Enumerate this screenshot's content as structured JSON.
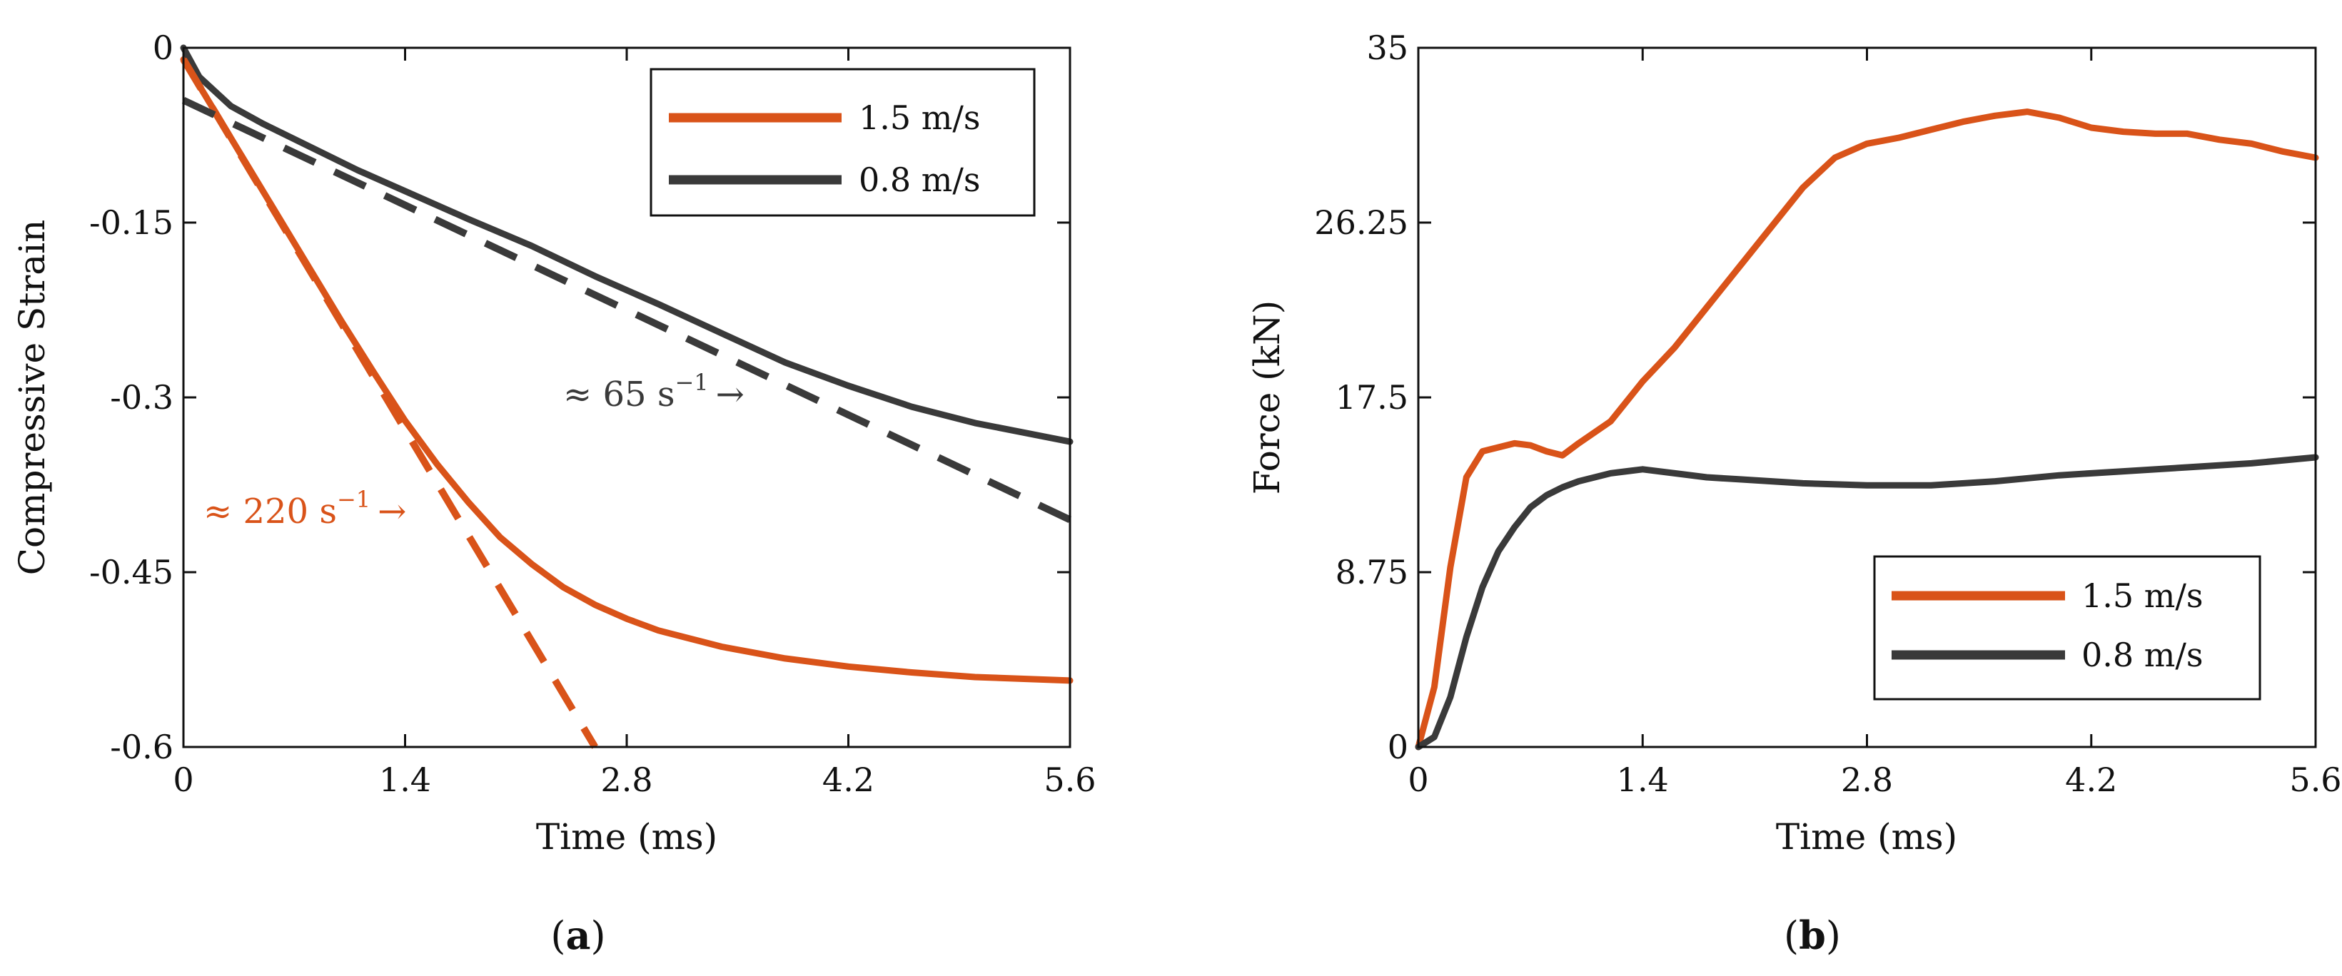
{
  "colors": {
    "orange": "#D95319",
    "dark": "#3A3A3A",
    "axis": "#111111"
  },
  "panels": [
    {
      "id": "a",
      "caption": "a",
      "chart_data": {
        "type": "line",
        "xlabel": "Time (ms)",
        "ylabel": "Compressive Strain",
        "xlim": [
          0,
          5.6
        ],
        "ylim": [
          -0.6,
          0
        ],
        "xticks": [
          0,
          1.4,
          2.8,
          4.2,
          5.6
        ],
        "xtick_labels": [
          "0",
          "1.4",
          "2.8",
          "4.2",
          "5.6"
        ],
        "yticks": [
          0,
          -0.15,
          -0.3,
          -0.45,
          -0.6
        ],
        "ytick_labels": [
          "0",
          "-0.15",
          "-0.3",
          "-0.45",
          "-0.6"
        ],
        "grid": false,
        "legend": "top-right",
        "series": [
          {
            "name": "1.5 m/s",
            "color": "#D95319",
            "style": "solid",
            "x": [
              0,
              0.2,
              0.4,
              0.6,
              0.8,
              1.0,
              1.2,
              1.4,
              1.6,
              1.8,
              2.0,
              2.2,
              2.4,
              2.6,
              2.8,
              3.0,
              3.4,
              3.8,
              4.2,
              4.6,
              5.0,
              5.6
            ],
            "y": [
              -0.01,
              -0.055,
              -0.1,
              -0.145,
              -0.19,
              -0.235,
              -0.278,
              -0.32,
              -0.357,
              -0.39,
              -0.42,
              -0.443,
              -0.463,
              -0.478,
              -0.49,
              -0.5,
              -0.514,
              -0.524,
              -0.531,
              -0.536,
              -0.54,
              -0.543
            ]
          },
          {
            "name": "0.8 m/s",
            "color": "#3A3A3A",
            "style": "solid",
            "x": [
              0,
              0.1,
              0.3,
              0.5,
              0.8,
              1.1,
              1.4,
              1.8,
              2.2,
              2.6,
              3.0,
              3.4,
              3.8,
              4.2,
              4.6,
              5.0,
              5.6
            ],
            "y": [
              0,
              -0.025,
              -0.05,
              -0.065,
              -0.085,
              -0.105,
              -0.123,
              -0.147,
              -0.17,
              -0.196,
              -0.22,
              -0.245,
              -0.27,
              -0.29,
              -0.308,
              -0.322,
              -0.338
            ]
          },
          {
            "name": "≈ 220 s⁻¹ fit",
            "color": "#D95319",
            "style": "dashed",
            "legend": false,
            "x": [
              0,
              2.6
            ],
            "y": [
              -0.01,
              -0.6
            ]
          },
          {
            "name": "≈ 65 s⁻¹ fit",
            "color": "#3A3A3A",
            "style": "dashed",
            "legend": false,
            "x": [
              0,
              5.6
            ],
            "y": [
              -0.045,
              -0.405
            ]
          }
        ],
        "annotations": [
          {
            "id": "anno-220",
            "prefix": "≈ 220 s",
            "sup": "−1",
            "arrow": "→",
            "color": "#D95319"
          },
          {
            "id": "anno-65",
            "prefix": "≈ 65 s",
            "sup": "−1",
            "arrow": "→",
            "color": "#3A3A3A"
          }
        ]
      }
    },
    {
      "id": "b",
      "caption": "b",
      "chart_data": {
        "type": "line",
        "xlabel": "Time (ms)",
        "ylabel": "Force (kN)",
        "xlim": [
          0,
          5.6
        ],
        "ylim": [
          0,
          35
        ],
        "xticks": [
          0,
          1.4,
          2.8,
          4.2,
          5.6
        ],
        "xtick_labels": [
          "0",
          "1.4",
          "2.8",
          "4.2",
          "5.6"
        ],
        "yticks": [
          0,
          8.75,
          17.5,
          26.25,
          35
        ],
        "ytick_labels": [
          "0",
          "8.75",
          "17.5",
          "26.25",
          "35"
        ],
        "grid": false,
        "legend": "bottom-right",
        "series": [
          {
            "name": "1.5 m/s",
            "color": "#D95319",
            "style": "solid",
            "x": [
              0,
              0.1,
              0.2,
              0.3,
              0.4,
              0.5,
              0.6,
              0.7,
              0.8,
              0.9,
              1.0,
              1.2,
              1.4,
              1.6,
              1.8,
              2.0,
              2.2,
              2.4,
              2.6,
              2.8,
              3.0,
              3.2,
              3.4,
              3.6,
              3.8,
              4.0,
              4.2,
              4.4,
              4.6,
              4.8,
              5.0,
              5.2,
              5.4,
              5.6
            ],
            "y": [
              0,
              3,
              9,
              13.5,
              14.8,
              15,
              15.2,
              15.1,
              14.8,
              14.6,
              15.2,
              16.3,
              18.3,
              20,
              22,
              24,
              26,
              28,
              29.5,
              30.2,
              30.5,
              30.9,
              31.3,
              31.6,
              31.8,
              31.5,
              31.0,
              30.8,
              30.7,
              30.7,
              30.4,
              30.2,
              29.8,
              29.5
            ]
          },
          {
            "name": "0.8 m/s",
            "color": "#3A3A3A",
            "style": "solid",
            "x": [
              0,
              0.1,
              0.2,
              0.3,
              0.4,
              0.5,
              0.6,
              0.7,
              0.8,
              0.9,
              1.0,
              1.2,
              1.4,
              1.6,
              1.8,
              2.0,
              2.4,
              2.8,
              3.2,
              3.6,
              4.0,
              4.4,
              4.8,
              5.2,
              5.6
            ],
            "y": [
              0,
              0.5,
              2.5,
              5.5,
              8,
              9.8,
              11,
              12,
              12.6,
              13,
              13.3,
              13.7,
              13.9,
              13.7,
              13.5,
              13.4,
              13.2,
              13.1,
              13.1,
              13.3,
              13.6,
              13.8,
              14.0,
              14.2,
              14.5
            ]
          }
        ]
      }
    }
  ]
}
